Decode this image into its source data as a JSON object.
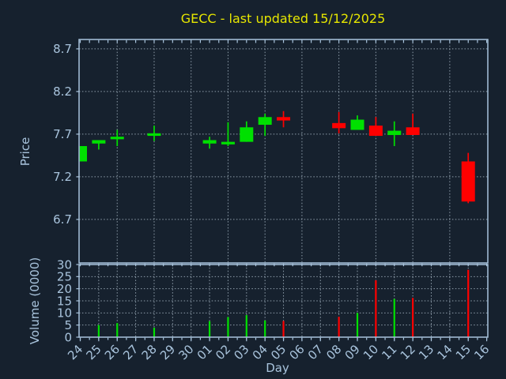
{
  "title": "GECC - last updated 15/12/2025",
  "colors": {
    "background": "#16212e",
    "axis": "#a9c4dd",
    "grid": "#aebecb",
    "up": "#00e000",
    "down": "#ff0000",
    "title": "#e6e600"
  },
  "chart_data": {
    "type": "candlestick",
    "title": "GECC - last updated 15/12/2025",
    "xlabel": "Day",
    "price_ylabel": "Price",
    "volume_ylabel": "Volume (0000)",
    "grid": true,
    "days": [
      "24",
      "25",
      "26",
      "27",
      "28",
      "29",
      "30",
      "01",
      "02",
      "03",
      "04",
      "05",
      "06",
      "07",
      "08",
      "09",
      "10",
      "11",
      "12",
      "13",
      "14",
      "15",
      "16"
    ],
    "price_ticks": [
      8.7,
      8.2,
      7.7,
      7.2,
      6.7
    ],
    "price_ylim": [
      6.19,
      8.81
    ],
    "volume_ticks": [
      0,
      5,
      10,
      15,
      20,
      25,
      30
    ],
    "volume_ylim": [
      0,
      30
    ],
    "candles": [
      {
        "day": "24",
        "open": 7.38,
        "high": 7.56,
        "low": 7.38,
        "close": 7.56,
        "volume": 0
      },
      {
        "day": "25",
        "open": 7.59,
        "high": 7.63,
        "low": 7.52,
        "close": 7.63,
        "volume": 5.0
      },
      {
        "day": "26",
        "open": 7.64,
        "high": 7.75,
        "low": 7.56,
        "close": 7.67,
        "volume": 5.8
      },
      {
        "day": "28",
        "open": 7.68,
        "high": 7.8,
        "low": 7.62,
        "close": 7.71,
        "volume": 3.9
      },
      {
        "day": "01",
        "open": 7.59,
        "high": 7.67,
        "low": 7.53,
        "close": 7.63,
        "volume": 6.6
      },
      {
        "day": "02",
        "open": 7.58,
        "high": 7.84,
        "low": 7.56,
        "close": 7.61,
        "volume": 8.3
      },
      {
        "day": "03",
        "open": 7.61,
        "high": 7.85,
        "low": 7.61,
        "close": 7.78,
        "volume": 9.1
      },
      {
        "day": "04",
        "open": 7.81,
        "high": 7.94,
        "low": 7.68,
        "close": 7.9,
        "volume": 6.9
      },
      {
        "day": "05",
        "open": 7.9,
        "high": 7.97,
        "low": 7.78,
        "close": 7.86,
        "volume": 6.7
      },
      {
        "day": "08",
        "open": 7.83,
        "high": 7.96,
        "low": 7.71,
        "close": 7.77,
        "volume": 8.4
      },
      {
        "day": "09",
        "open": 7.75,
        "high": 7.92,
        "low": 7.75,
        "close": 7.87,
        "volume": 10.0
      },
      {
        "day": "10",
        "open": 7.8,
        "high": 7.9,
        "low": 7.68,
        "close": 7.68,
        "volume": 23.5
      },
      {
        "day": "11",
        "open": 7.69,
        "high": 7.85,
        "low": 7.56,
        "close": 7.74,
        "volume": 15.8
      },
      {
        "day": "12",
        "open": 7.78,
        "high": 7.94,
        "low": 7.69,
        "close": 7.69,
        "volume": 16.2
      },
      {
        "day": "15",
        "open": 7.38,
        "high": 7.48,
        "low": 6.89,
        "close": 6.91,
        "volume": 27.8
      }
    ]
  }
}
